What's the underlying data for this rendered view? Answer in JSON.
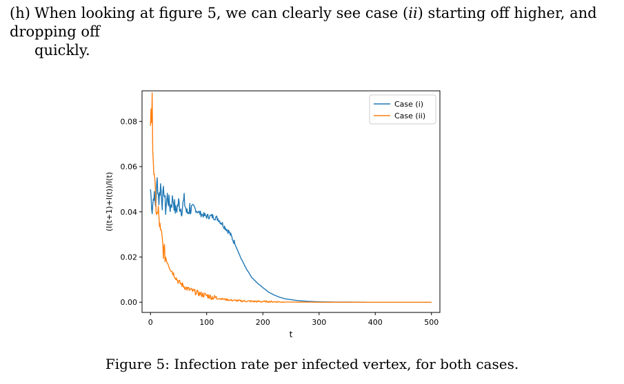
{
  "paragraph": {
    "label": "(h)",
    "text_before": "When looking at figure 5, we can clearly see case (",
    "case_symbol": "ii",
    "text_after": ") starting off higher, and dropping off",
    "line2": "quickly."
  },
  "caption": "Figure 5: Infection rate per infected vertex, for both cases.",
  "chart_data": {
    "type": "line",
    "title": "",
    "xlabel": "t",
    "ylabel": "(I(t+1)+I(t))/I(t)",
    "xlim": [
      -15,
      515
    ],
    "ylim": [
      -0.0045,
      0.0935
    ],
    "xticks": [
      0,
      100,
      200,
      300,
      400,
      500
    ],
    "xtick_labels": [
      "0",
      "100",
      "200",
      "300",
      "400",
      "500"
    ],
    "yticks": [
      0.0,
      0.02,
      0.04,
      0.06,
      0.08
    ],
    "ytick_labels": [
      "0.00",
      "0.02",
      "0.04",
      "0.06",
      "0.08"
    ],
    "legend_position": "top-right",
    "series": [
      {
        "name": "Case (i)",
        "color": "#1f77b4",
        "x": [
          0,
          3,
          6,
          9,
          12,
          15,
          18,
          21,
          24,
          27,
          30,
          35,
          40,
          45,
          50,
          55,
          60,
          65,
          70,
          75,
          80,
          90,
          100,
          110,
          120,
          130,
          140,
          150,
          160,
          170,
          180,
          190,
          200,
          210,
          220,
          230,
          240,
          260,
          280,
          300,
          330,
          360,
          400,
          450,
          500
        ],
        "y": [
          0.05,
          0.041,
          0.048,
          0.043,
          0.054,
          0.045,
          0.052,
          0.044,
          0.05,
          0.041,
          0.047,
          0.042,
          0.046,
          0.04,
          0.044,
          0.041,
          0.045,
          0.039,
          0.042,
          0.04,
          0.041,
          0.039,
          0.038,
          0.038,
          0.037,
          0.034,
          0.031,
          0.026,
          0.02,
          0.015,
          0.011,
          0.0085,
          0.0065,
          0.0045,
          0.0032,
          0.0022,
          0.0015,
          0.0008,
          0.0004,
          0.0002,
          0.0001,
          5e-05,
          0.0,
          0.0,
          0.0
        ]
      },
      {
        "name": "Case (ii)",
        "color": "#ff7f0e",
        "x": [
          0,
          1,
          2,
          3,
          4,
          5,
          6,
          8,
          10,
          12,
          14,
          16,
          18,
          20,
          23,
          26,
          30,
          35,
          40,
          45,
          50,
          55,
          60,
          65,
          70,
          75,
          80,
          90,
          100,
          110,
          120,
          130,
          140,
          150,
          160,
          180,
          200,
          220,
          250,
          300,
          350,
          400,
          450,
          500
        ],
        "y": [
          0.08,
          0.087,
          0.076,
          0.089,
          0.071,
          0.064,
          0.058,
          0.05,
          0.042,
          0.038,
          0.04,
          0.035,
          0.03,
          0.029,
          0.023,
          0.021,
          0.018,
          0.015,
          0.013,
          0.011,
          0.009,
          0.008,
          0.007,
          0.006,
          0.0055,
          0.005,
          0.0045,
          0.0035,
          0.003,
          0.0022,
          0.0018,
          0.0014,
          0.001,
          0.0008,
          0.0006,
          0.0004,
          0.0003,
          0.0002,
          0.0001,
          0.0,
          0.0,
          0.0,
          0.0,
          0.0
        ]
      }
    ]
  }
}
